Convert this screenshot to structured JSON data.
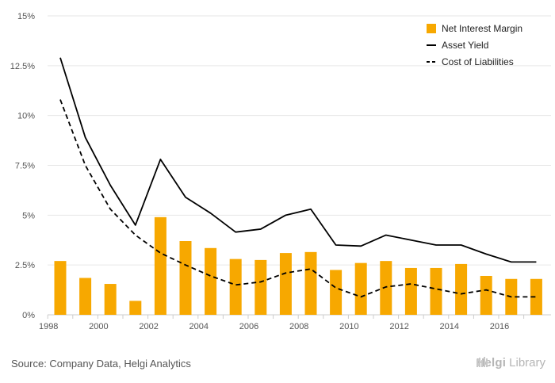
{
  "chart_data": {
    "type": "bar",
    "categories": [
      "1998",
      "1999",
      "2000",
      "2001",
      "2002",
      "2003",
      "2004",
      "2005",
      "2006",
      "2007",
      "2008",
      "2009",
      "2010",
      "2011",
      "2012",
      "2013",
      "2014",
      "2015",
      "2016",
      "2017"
    ],
    "x_tick_labels": [
      "1998",
      "2000",
      "2002",
      "2004",
      "2006",
      "2008",
      "2010",
      "2012",
      "2014",
      "2016"
    ],
    "y_tick_labels": [
      "0%",
      "2.5%",
      "5%",
      "7.5%",
      "10%",
      "12.5%",
      "15%"
    ],
    "ylim": [
      0,
      15
    ],
    "grid": true,
    "legend_position": "top-right",
    "series": [
      {
        "name": "Net Interest Margin",
        "type": "bar",
        "color": "#f7a800",
        "values": [
          2.7,
          1.85,
          1.55,
          0.7,
          4.9,
          3.7,
          3.35,
          2.8,
          2.75,
          3.1,
          3.15,
          2.25,
          2.6,
          2.7,
          2.35,
          2.35,
          2.55,
          1.95,
          1.8,
          1.8
        ]
      },
      {
        "name": "Asset Yield",
        "type": "line",
        "style": "solid",
        "color": "#000000",
        "values": [
          12.9,
          8.9,
          6.5,
          4.5,
          7.8,
          5.9,
          5.1,
          4.15,
          4.3,
          5.0,
          5.3,
          3.5,
          3.45,
          4.0,
          3.75,
          3.5,
          3.5,
          3.05,
          2.65,
          2.65
        ]
      },
      {
        "name": "Cost of Liabilities",
        "type": "line",
        "style": "dashed",
        "color": "#000000",
        "values": [
          10.8,
          7.5,
          5.3,
          4.0,
          3.1,
          2.5,
          1.95,
          1.5,
          1.65,
          2.1,
          2.3,
          1.35,
          0.9,
          1.4,
          1.55,
          1.3,
          1.05,
          1.25,
          0.9,
          0.9
        ]
      }
    ]
  },
  "footer": {
    "source": "Source: Company Data, Helgi Analytics",
    "brand_bold": "Helgi",
    "brand_light": "Library"
  }
}
